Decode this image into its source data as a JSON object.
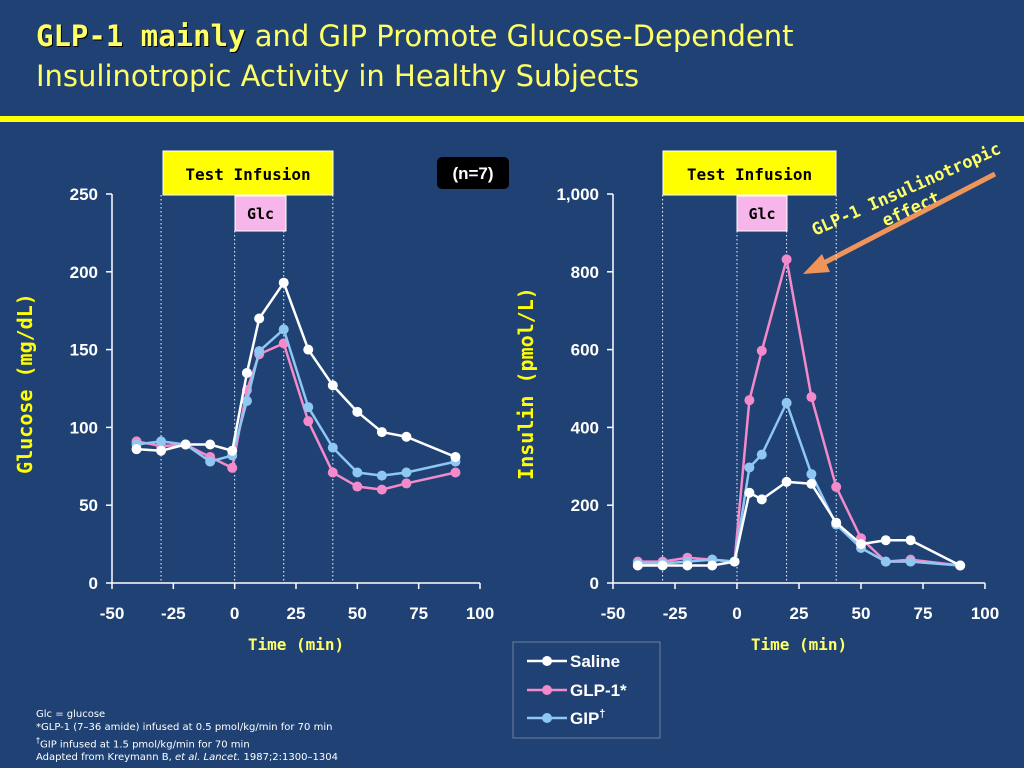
{
  "title": {
    "highlight": "GLP-1 mainly",
    "rest": " and GIP Promote Glucose-Dependent Insulinotropic Activity in Healthy Subjects"
  },
  "colors": {
    "background": "#1f4174",
    "accent_yellow": "#ffff00",
    "saline": "#ffffff",
    "glp1": "#f48ac9",
    "gip": "#8ec8f2",
    "arrow": "#f0955a",
    "glc_box": "#f7b6ea"
  },
  "n_label": "(n=7)",
  "annotation": "GLP-1 Insulinotropic effect",
  "legend": {
    "saline": "Saline",
    "glp1": "GLP-1*",
    "gip": "GIP",
    "gip_mark": "†"
  },
  "footnotes": {
    "line1": "Glc = glucose",
    "line2": "*GLP-1 (7–36 amide) infused at 0.5 pmol/kg/min for 70 min",
    "line3_mark": "†",
    "line3": "GIP infused at 1.5 pmol/kg/min for 70 min",
    "line4_pre": "Adapted from Kreymann B, ",
    "line4_etal": "et al. Lancet.",
    "line4_post": " 1987;2:1300–1304"
  },
  "chart_data": [
    {
      "type": "line",
      "id": "glucose",
      "title": "",
      "xlabel": "Time (min)",
      "ylabel": "Glucose (mg/dL)",
      "xlim": [
        -50,
        100
      ],
      "ylim": [
        0,
        250
      ],
      "xticks": [
        -50,
        -25,
        0,
        25,
        50,
        75,
        100
      ],
      "xtick_labels": [
        "-50",
        "-25",
        "0",
        "25",
        "50",
        "75",
        "100"
      ],
      "yticks": [
        0,
        50,
        100,
        150,
        200,
        250
      ],
      "ytick_labels": [
        "0",
        "50",
        "100",
        "150",
        "200",
        "250"
      ],
      "vlines": [
        -30,
        0,
        20,
        40
      ],
      "test_infusion_label": "Test Infusion",
      "test_infusion_range": [
        -30,
        40
      ],
      "glc_label": "Glc",
      "glc_range": [
        0,
        20
      ],
      "series": [
        {
          "name": "Saline",
          "key": "saline",
          "x": [
            -40,
            -30,
            -20,
            -10,
            -1,
            5,
            10,
            20,
            30,
            40,
            50,
            60,
            70,
            90
          ],
          "values": [
            86,
            85,
            89,
            89,
            85,
            135,
            170,
            193,
            150,
            127,
            110,
            97,
            94,
            81
          ]
        },
        {
          "name": "GLP-1*",
          "key": "glp1",
          "x": [
            -40,
            -30,
            -20,
            -10,
            -1,
            5,
            10,
            20,
            30,
            40,
            50,
            60,
            70,
            90
          ],
          "values": [
            91,
            88,
            89,
            81,
            74,
            124,
            147,
            154,
            104,
            71,
            62,
            60,
            64,
            71
          ]
        },
        {
          "name": "GIP†",
          "key": "gip",
          "x": [
            -40,
            -30,
            -20,
            -10,
            -1,
            5,
            10,
            20,
            30,
            40,
            50,
            60,
            70,
            90
          ],
          "values": [
            89,
            91,
            89,
            78,
            82,
            117,
            149,
            163,
            113,
            87,
            71,
            69,
            71,
            78
          ]
        }
      ]
    },
    {
      "type": "line",
      "id": "insulin",
      "title": "",
      "xlabel": "Time (min)",
      "ylabel": "Insulin (pmol/L)",
      "xlim": [
        -50,
        100
      ],
      "ylim": [
        0,
        1000
      ],
      "xticks": [
        -50,
        -25,
        0,
        25,
        50,
        75,
        100
      ],
      "xtick_labels": [
        "-50",
        "-25",
        "0",
        "25",
        "50",
        "75",
        "100"
      ],
      "yticks": [
        0,
        200,
        400,
        600,
        800,
        1000
      ],
      "ytick_labels": [
        "0",
        "200",
        "400",
        "600",
        "800",
        "1,000"
      ],
      "vlines": [
        -30,
        0,
        20,
        40
      ],
      "test_infusion_label": "Test Infusion",
      "test_infusion_range": [
        -30,
        40
      ],
      "glc_label": "Glc",
      "glc_range": [
        0,
        20
      ],
      "series": [
        {
          "name": "Saline",
          "key": "saline",
          "x": [
            -40,
            -30,
            -20,
            -10,
            -1,
            5,
            10,
            20,
            30,
            40,
            50,
            60,
            70,
            90
          ],
          "values": [
            45,
            45,
            45,
            45,
            55,
            232,
            215,
            260,
            255,
            155,
            100,
            110,
            110,
            45
          ]
        },
        {
          "name": "GLP-1*",
          "key": "glp1",
          "x": [
            -40,
            -30,
            -20,
            -10,
            -1,
            5,
            10,
            20,
            30,
            40,
            50,
            60,
            70,
            90
          ],
          "values": [
            55,
            55,
            65,
            60,
            55,
            470,
            597,
            832,
            478,
            247,
            115,
            55,
            60,
            45
          ]
        },
        {
          "name": "GIP†",
          "key": "gip",
          "x": [
            -40,
            -30,
            -20,
            -10,
            -1,
            5,
            10,
            20,
            30,
            40,
            50,
            60,
            70,
            90
          ],
          "values": [
            50,
            50,
            55,
            60,
            55,
            297,
            330,
            463,
            280,
            150,
            90,
            55,
            55,
            45
          ]
        }
      ]
    }
  ]
}
